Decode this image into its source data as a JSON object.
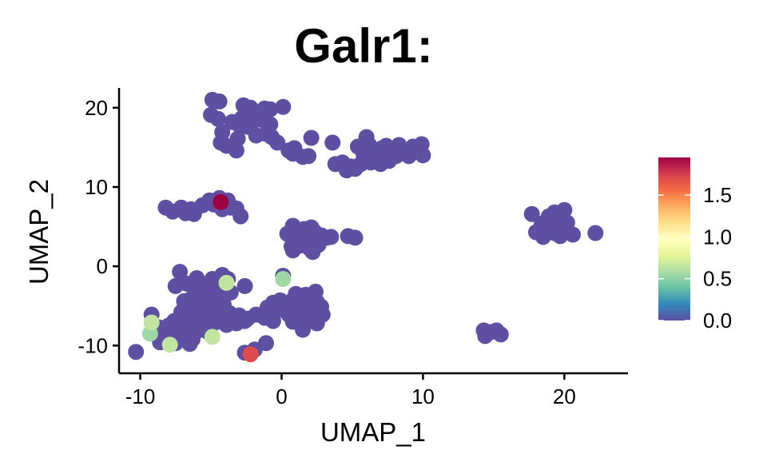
{
  "chart_data": {
    "type": "scatter",
    "title": "Galr1:",
    "xlabel": "UMAP_1",
    "ylabel": "UMAP_2",
    "xlim": [
      -11.5,
      24.5
    ],
    "ylim": [
      -13.5,
      22.5
    ],
    "x_ticks": [
      -10,
      0,
      10,
      20
    ],
    "y_ticks": [
      -10,
      0,
      10,
      20
    ],
    "x_tick_labels": [
      "-10",
      "0",
      "10",
      "20"
    ],
    "y_tick_labels": [
      "-10",
      "0",
      "10",
      "20"
    ],
    "grid": false,
    "color_scale": {
      "name": "Spectral",
      "range": [
        0,
        1.95
      ],
      "ticks": [
        0.0,
        0.5,
        1.0,
        1.5
      ],
      "tick_labels": [
        "0.0",
        "0.5",
        "1.0",
        "1.5"
      ],
      "colors": [
        "#5e4fa2",
        "#3288bd",
        "#66c2a5",
        "#abdda4",
        "#e6f598",
        "#ffffbf",
        "#fee08b",
        "#fdae61",
        "#f46d43",
        "#d53e4f",
        "#9e0142"
      ]
    },
    "legend_position": "right",
    "points": [
      {
        "x": -4.9,
        "y": 21
      },
      {
        "x": -4.4,
        "y": 20.8
      },
      {
        "x": -2.7,
        "y": 20.3
      },
      {
        "x": -2.2,
        "y": 20
      },
      {
        "x": -1.2,
        "y": 19.9
      },
      {
        "x": 0.1,
        "y": 20.1
      },
      {
        "x": -0.8,
        "y": 19.8
      },
      {
        "x": -5,
        "y": 19.1
      },
      {
        "x": -4.5,
        "y": 18.6
      },
      {
        "x": -3.5,
        "y": 18.2
      },
      {
        "x": -2.8,
        "y": 18.7
      },
      {
        "x": -2.1,
        "y": 18.2
      },
      {
        "x": -1.5,
        "y": 18.5
      },
      {
        "x": -0.8,
        "y": 17.9
      },
      {
        "x": -2.4,
        "y": 17.6
      },
      {
        "x": -3,
        "y": 17.8
      },
      {
        "x": -4.2,
        "y": 16.9
      },
      {
        "x": -1.8,
        "y": 16.5
      },
      {
        "x": -1.1,
        "y": 16.7
      },
      {
        "x": -3.1,
        "y": 16.1
      },
      {
        "x": -0.7,
        "y": 16.3
      },
      {
        "x": -4.3,
        "y": 15.6
      },
      {
        "x": -3.9,
        "y": 15.2
      },
      {
        "x": -3.2,
        "y": 14.6
      },
      {
        "x": -0.3,
        "y": 15.6
      },
      {
        "x": 0.5,
        "y": 14.6
      },
      {
        "x": 0.9,
        "y": 14.9
      },
      {
        "x": 0.8,
        "y": 14.2
      },
      {
        "x": 1.5,
        "y": 13.8
      },
      {
        "x": 1.9,
        "y": 13.9
      },
      {
        "x": 2.1,
        "y": 16.2
      },
      {
        "x": 3.6,
        "y": 15.6
      },
      {
        "x": 3.8,
        "y": 12.9
      },
      {
        "x": 4.3,
        "y": 13.1
      },
      {
        "x": 4.6,
        "y": 12.1
      },
      {
        "x": 4.9,
        "y": 12.6
      },
      {
        "x": 5.2,
        "y": 12.3
      },
      {
        "x": 5.6,
        "y": 12.9
      },
      {
        "x": 5.4,
        "y": 15.1
      },
      {
        "x": 6,
        "y": 16.3
      },
      {
        "x": 6.2,
        "y": 15.3
      },
      {
        "x": 6.5,
        "y": 14.7
      },
      {
        "x": 6.8,
        "y": 13.6
      },
      {
        "x": 6.3,
        "y": 13.1
      },
      {
        "x": 7.1,
        "y": 14.9
      },
      {
        "x": 7.4,
        "y": 15.2
      },
      {
        "x": 7.3,
        "y": 14.3
      },
      {
        "x": 7.6,
        "y": 13.3
      },
      {
        "x": 8,
        "y": 14.8
      },
      {
        "x": 8.3,
        "y": 15.3
      },
      {
        "x": 8.1,
        "y": 13.9
      },
      {
        "x": 8.6,
        "y": 14.5
      },
      {
        "x": 9,
        "y": 13.9
      },
      {
        "x": 9.3,
        "y": 15.1
      },
      {
        "x": 9.9,
        "y": 15.4
      },
      {
        "x": 10,
        "y": 14
      },
      {
        "x": 5.8,
        "y": 14.1
      },
      {
        "x": 7,
        "y": 12.9
      },
      {
        "x": -8.2,
        "y": 7.4
      },
      {
        "x": -7.7,
        "y": 6.9
      },
      {
        "x": -7.1,
        "y": 7.4
      },
      {
        "x": -6.8,
        "y": 6.7
      },
      {
        "x": -6.4,
        "y": 7.2
      },
      {
        "x": -6.2,
        "y": 6.6
      },
      {
        "x": -5.6,
        "y": 7.7
      },
      {
        "x": -5.1,
        "y": 8.3
      },
      {
        "x": -4.4,
        "y": 8.6
      },
      {
        "x": -3.8,
        "y": 8.3
      },
      {
        "x": -3.6,
        "y": 7.4
      },
      {
        "x": -3.2,
        "y": 7.3
      },
      {
        "x": -2.9,
        "y": 6.3
      },
      {
        "x": -4.8,
        "y": 7.8
      },
      {
        "x": -4.2,
        "y": 7.2
      },
      {
        "x": 0.8,
        "y": 5.1
      },
      {
        "x": 1.6,
        "y": 4.7
      },
      {
        "x": 2.1,
        "y": 4.9
      },
      {
        "x": 2.3,
        "y": 4.4
      },
      {
        "x": 0.4,
        "y": 4.1
      },
      {
        "x": 1,
        "y": 3.9
      },
      {
        "x": 1.4,
        "y": 4.2
      },
      {
        "x": 2.8,
        "y": 3.9
      },
      {
        "x": 3.2,
        "y": 3.6
      },
      {
        "x": 3.5,
        "y": 3.7
      },
      {
        "x": 1,
        "y": 3.3
      },
      {
        "x": 1.7,
        "y": 3.1
      },
      {
        "x": 2.4,
        "y": 3.3
      },
      {
        "x": 0.7,
        "y": 2.5
      },
      {
        "x": 1.3,
        "y": 2.6
      },
      {
        "x": 2,
        "y": 2.2
      },
      {
        "x": 0.8,
        "y": 2
      },
      {
        "x": 2.2,
        "y": 1.8
      },
      {
        "x": 4.7,
        "y": 3.8
      },
      {
        "x": 5.2,
        "y": 3.6
      },
      {
        "x": 1.5,
        "y": 3.7
      },
      {
        "x": 2.6,
        "y": 2.7
      },
      {
        "x": 17.7,
        "y": 6.6
      },
      {
        "x": 18.9,
        "y": 6.3
      },
      {
        "x": 19.3,
        "y": 6.8
      },
      {
        "x": 20,
        "y": 7.1
      },
      {
        "x": 19.6,
        "y": 5.9
      },
      {
        "x": 18.4,
        "y": 5.4
      },
      {
        "x": 19.1,
        "y": 5.1
      },
      {
        "x": 20.2,
        "y": 5.5
      },
      {
        "x": 18,
        "y": 4.3
      },
      {
        "x": 18.7,
        "y": 4.5
      },
      {
        "x": 19.3,
        "y": 4.2
      },
      {
        "x": 20,
        "y": 4.5
      },
      {
        "x": 18.5,
        "y": 3.7
      },
      {
        "x": 19.7,
        "y": 3.8
      },
      {
        "x": 20.6,
        "y": 4
      },
      {
        "x": 22.2,
        "y": 4.2
      },
      {
        "x": 19,
        "y": 4.9
      },
      {
        "x": 19.5,
        "y": 6.5
      },
      {
        "x": -7.2,
        "y": -0.7
      },
      {
        "x": -6,
        "y": -1.5
      },
      {
        "x": -4.9,
        "y": -1.6
      },
      {
        "x": -4.2,
        "y": -1.1
      },
      {
        "x": -3.8,
        "y": -1.6
      },
      {
        "x": -7.5,
        "y": -2.5
      },
      {
        "x": -6.7,
        "y": -2.2
      },
      {
        "x": -5.6,
        "y": -2.6
      },
      {
        "x": -4.9,
        "y": -2.3
      },
      {
        "x": -2.6,
        "y": -2.5
      },
      {
        "x": -5.9,
        "y": -3.2
      },
      {
        "x": -5.2,
        "y": -3.7
      },
      {
        "x": -4.3,
        "y": -3.5
      },
      {
        "x": -3.6,
        "y": -3.3
      },
      {
        "x": -6.9,
        "y": -4.4
      },
      {
        "x": -6.4,
        "y": -4.1
      },
      {
        "x": -5.5,
        "y": -4.7
      },
      {
        "x": -4.6,
        "y": -4.3
      },
      {
        "x": -7.1,
        "y": -5.8
      },
      {
        "x": -6.4,
        "y": -5.6
      },
      {
        "x": -5.8,
        "y": -6.1
      },
      {
        "x": -5.1,
        "y": -5.7
      },
      {
        "x": -4.4,
        "y": -6.3
      },
      {
        "x": -3.7,
        "y": -5.9
      },
      {
        "x": -3,
        "y": -6.2
      },
      {
        "x": -2.4,
        "y": -6.6
      },
      {
        "x": -1.8,
        "y": -6.1
      },
      {
        "x": -1.2,
        "y": -6.5
      },
      {
        "x": -0.6,
        "y": -6.9
      },
      {
        "x": -7.6,
        "y": -6.9
      },
      {
        "x": -6.8,
        "y": -7.1
      },
      {
        "x": -6.1,
        "y": -6.8
      },
      {
        "x": -5.4,
        "y": -7.3
      },
      {
        "x": -4.7,
        "y": -7.1
      },
      {
        "x": -3.9,
        "y": -7.4
      },
      {
        "x": -3.2,
        "y": -7.2
      },
      {
        "x": -2.6,
        "y": -6.9
      },
      {
        "x": -8.7,
        "y": -7.7
      },
      {
        "x": -8,
        "y": -7.5
      },
      {
        "x": -7.3,
        "y": -7.8
      },
      {
        "x": -6.6,
        "y": -7.7
      },
      {
        "x": -5.9,
        "y": -8.1
      },
      {
        "x": -5.2,
        "y": -8.3
      },
      {
        "x": -8.4,
        "y": -8.6
      },
      {
        "x": -7.7,
        "y": -8.8
      },
      {
        "x": -7,
        "y": -8.7
      },
      {
        "x": -6.3,
        "y": -9.2
      },
      {
        "x": -9.2,
        "y": -6.1
      },
      {
        "x": -9.1,
        "y": -8.1
      },
      {
        "x": -8.6,
        "y": -9.6
      },
      {
        "x": -7.5,
        "y": -9.7
      },
      {
        "x": -6.5,
        "y": -9.8
      },
      {
        "x": -10.3,
        "y": -10.8
      },
      {
        "x": -2.6,
        "y": -10.9
      },
      {
        "x": -1.9,
        "y": -10.5
      },
      {
        "x": -1.1,
        "y": -9.7
      },
      {
        "x": -5,
        "y": -5.2
      },
      {
        "x": -4.1,
        "y": -4.8
      },
      {
        "x": 0.1,
        "y": -1.2
      },
      {
        "x": -0.6,
        "y": -4.6
      },
      {
        "x": -0.1,
        "y": -4.3
      },
      {
        "x": 0.4,
        "y": -4.7
      },
      {
        "x": 1,
        "y": -3.5
      },
      {
        "x": 1.7,
        "y": -3.6
      },
      {
        "x": 2.4,
        "y": -3.2
      },
      {
        "x": 0.7,
        "y": -4.4
      },
      {
        "x": 1.3,
        "y": -4.1
      },
      {
        "x": 2,
        "y": -4.2
      },
      {
        "x": 2.5,
        "y": -4.5
      },
      {
        "x": 0.9,
        "y": -5.3
      },
      {
        "x": 1.5,
        "y": -5.1
      },
      {
        "x": 2.1,
        "y": -5.5
      },
      {
        "x": 2.8,
        "y": -5.1
      },
      {
        "x": 2.9,
        "y": -6.1
      },
      {
        "x": 0.5,
        "y": -6.1
      },
      {
        "x": 1.2,
        "y": -6.2
      },
      {
        "x": 1.8,
        "y": -6.6
      },
      {
        "x": 0.8,
        "y": -7
      },
      {
        "x": 2.5,
        "y": -7.2
      },
      {
        "x": 1.6,
        "y": -7.4
      },
      {
        "x": 1.5,
        "y": -8
      },
      {
        "x": -1,
        "y": -5.2
      },
      {
        "x": -0.4,
        "y": -5.7
      },
      {
        "x": 0,
        "y": -5.3
      },
      {
        "x": 2.3,
        "y": -4.9
      },
      {
        "x": 14.3,
        "y": -8.1
      },
      {
        "x": 14.8,
        "y": -8.3
      },
      {
        "x": 15.2,
        "y": -8.1
      },
      {
        "x": 14.4,
        "y": -8.8
      },
      {
        "x": 15.5,
        "y": -8.6
      },
      {
        "x": -9.2,
        "y": -7.1,
        "v": 0.65
      },
      {
        "x": -9.3,
        "y": -8.5,
        "v": 0.55
      },
      {
        "x": -7.9,
        "y": -9.9,
        "v": 0.65
      },
      {
        "x": -4.9,
        "y": -8.9,
        "v": 0.65
      },
      {
        "x": -3.9,
        "y": -2.1,
        "v": 0.65
      },
      {
        "x": 0.1,
        "y": -1.6,
        "v": 0.55
      },
      {
        "x": -2.2,
        "y": -11.1,
        "v": 1.7
      },
      {
        "x": -4.3,
        "y": 8.1,
        "v": 1.95
      }
    ]
  }
}
